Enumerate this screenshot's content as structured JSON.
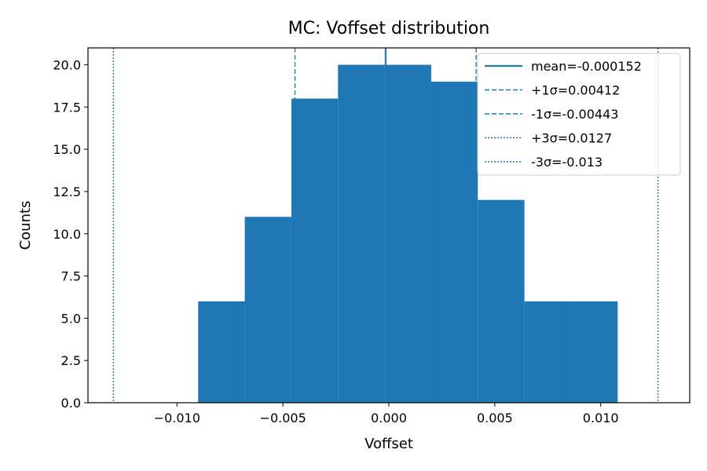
{
  "chart_data": {
    "type": "bar",
    "title": "MC: Voffset distribution",
    "xlabel": "Voffset",
    "ylabel": "Counts",
    "xlim": [
      -0.0142,
      0.0142
    ],
    "ylim": [
      0,
      21
    ],
    "grid": false,
    "legend_position": "top-right",
    "bar_color": "#1f77b4",
    "line_color": "#1f77b4",
    "x_ticks": [
      {
        "value": -0.01,
        "label": "−0.010"
      },
      {
        "value": -0.005,
        "label": "−0.005"
      },
      {
        "value": 0.0,
        "label": "0.000"
      },
      {
        "value": 0.005,
        "label": "0.005"
      },
      {
        "value": 0.01,
        "label": "0.010"
      }
    ],
    "y_ticks": [
      {
        "value": 0.0,
        "label": "0.0"
      },
      {
        "value": 2.5,
        "label": "2.5"
      },
      {
        "value": 5.0,
        "label": "5.0"
      },
      {
        "value": 7.5,
        "label": "7.5"
      },
      {
        "value": 10.0,
        "label": "10.0"
      },
      {
        "value": 12.5,
        "label": "12.5"
      },
      {
        "value": 15.0,
        "label": "15.0"
      },
      {
        "value": 17.5,
        "label": "17.5"
      },
      {
        "value": 20.0,
        "label": "20.0"
      }
    ],
    "bins": [
      {
        "x0": -0.009,
        "x1": -0.0068,
        "count": 6
      },
      {
        "x0": -0.0068,
        "x1": -0.0046,
        "count": 11
      },
      {
        "x0": -0.0046,
        "x1": -0.0024,
        "count": 18
      },
      {
        "x0": -0.0024,
        "x1": -0.0002,
        "count": 20
      },
      {
        "x0": -0.0002,
        "x1": 0.002,
        "count": 20
      },
      {
        "x0": 0.002,
        "x1": 0.0042,
        "count": 19
      },
      {
        "x0": 0.0042,
        "x1": 0.0064,
        "count": 12
      },
      {
        "x0": 0.0064,
        "x1": 0.0086,
        "count": 6
      },
      {
        "x0": 0.0086,
        "x1": 0.0108,
        "count": 6
      }
    ],
    "reference_lines": [
      {
        "label": "mean=-0.000152",
        "x": -0.000152,
        "style": "solid"
      },
      {
        "label": "+1σ=0.00412",
        "x": 0.00412,
        "style": "dashed"
      },
      {
        "label": "-1σ=-0.00443",
        "x": -0.00443,
        "style": "dashed"
      },
      {
        "label": "+3σ=0.0127",
        "x": 0.0127,
        "style": "dotted"
      },
      {
        "label": "-3σ=-0.013",
        "x": -0.013,
        "style": "dotted"
      }
    ]
  }
}
